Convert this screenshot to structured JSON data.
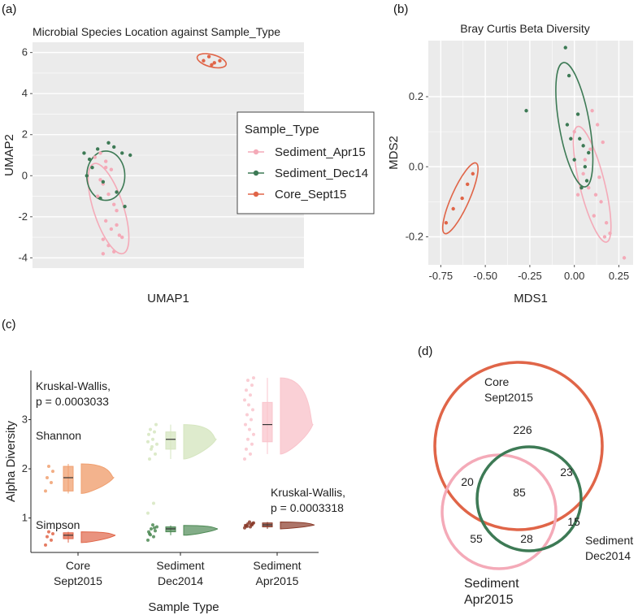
{
  "panel_labels": [
    "(a)",
    "(b)",
    "(c)",
    "(d)"
  ],
  "colors": {
    "sediment_apr": "#f4aab8",
    "sediment_dec": "#3d7a55",
    "core_sept": "#e06548",
    "panel_bg": "#ebebeb",
    "shannon_core": "#f0a070",
    "shannon_dec": "#d6e6c0",
    "shannon_apr": "#f9c4cc",
    "simpson_core": "#e06548",
    "simpson_dec": "#4e8a55",
    "simpson_apr": "#8a3b2a"
  },
  "chart_data": [
    {
      "panel": "(a)",
      "type": "scatter",
      "title": "Microbial Species Location against Sample_Type",
      "xlabel": "UMAP1",
      "ylabel": "UMAP2",
      "yticks": [
        -4,
        -2,
        0,
        2,
        4,
        6
      ],
      "ylim": [
        -4.5,
        6.5
      ],
      "xlim": [
        -1,
        9
      ],
      "legend": {
        "title": "Sample_Type",
        "placement": "right",
        "entries": [
          "Sediment_Apr15",
          "Sediment_Dec14",
          "Core_Sept15"
        ]
      },
      "series": [
        {
          "name": "Sediment_Apr15",
          "color_key": "sediment_apr",
          "x": [
            1.3,
            1.5,
            1.7,
            1.9,
            1.6,
            1.8,
            2.0,
            2.1,
            1.4,
            1.7,
            1.9,
            2.2,
            1.6,
            1.8,
            2.0,
            2.3,
            1.5,
            1.7,
            2.1,
            1.6
          ],
          "y": [
            0.9,
            1.1,
            0.7,
            0.3,
            -0.4,
            -0.9,
            -1.4,
            -1.7,
            -1.0,
            -2.2,
            -2.6,
            -2.9,
            -3.1,
            -3.4,
            -3.7,
            -3.0,
            -0.2,
            0.4,
            -2.4,
            -3.8
          ]
        },
        {
          "name": "Sediment_Dec14",
          "color_key": "sediment_dec",
          "x": [
            0.9,
            1.1,
            1.4,
            1.8,
            2.0,
            2.3,
            1.2,
            1.6,
            2.1,
            1.0,
            1.5,
            2.4,
            2.6
          ],
          "y": [
            1.1,
            0.8,
            1.3,
            1.6,
            1.4,
            1.1,
            0.4,
            -0.3,
            -0.8,
            0.0,
            -1.1,
            -1.5,
            1.0
          ]
        },
        {
          "name": "Core_Sept15",
          "color_key": "core_sept",
          "x": [
            5.3,
            5.5,
            5.7,
            5.9,
            5.6
          ],
          "y": [
            5.6,
            5.8,
            5.5,
            5.6,
            5.4
          ]
        }
      ],
      "ellipses": [
        {
          "color_key": "sediment_apr",
          "cx": 1.8,
          "cy": -1.6,
          "rx": 0.55,
          "ry": 2.3,
          "angle": -18
        },
        {
          "color_key": "sediment_dec",
          "cx": 1.7,
          "cy": 0.0,
          "rx": 0.7,
          "ry": 1.2,
          "angle": 0
        },
        {
          "color_key": "core_sept",
          "cx": 5.6,
          "cy": 5.6,
          "rx": 0.55,
          "ry": 0.3,
          "angle": 15
        }
      ]
    },
    {
      "panel": "(b)",
      "type": "scatter",
      "title": "Bray Curtis Beta Diversity",
      "xlabel": "MDS1",
      "ylabel": "MDS2",
      "xticks": [
        -0.75,
        -0.5,
        -0.25,
        0.0,
        0.25
      ],
      "xtick_labels": [
        "-0.75",
        "-0.50",
        "-0.25",
        "0.00",
        "0.25"
      ],
      "yticks": [
        -0.2,
        0.0,
        0.2
      ],
      "ytick_labels": [
        "-0.2",
        "0.0",
        "0.2"
      ],
      "xlim": [
        -0.82,
        0.33
      ],
      "ylim": [
        -0.28,
        0.36
      ],
      "series": [
        {
          "name": "Sediment_Apr15",
          "color_key": "sediment_apr",
          "x": [
            0.1,
            0.13,
            0.16,
            0.05,
            0.08,
            0.12,
            0.15,
            0.18,
            0.02,
            0.06,
            0.11,
            0.2,
            0.0,
            0.14,
            0.17,
            0.28,
            0.09
          ],
          "y": [
            0.16,
            0.12,
            0.07,
            -0.02,
            -0.06,
            -0.08,
            -0.1,
            -0.16,
            -0.08,
            0.02,
            -0.14,
            -0.19,
            0.1,
            -0.03,
            -0.2,
            -0.26,
            0.05
          ]
        },
        {
          "name": "Sediment_Dec14",
          "color_key": "sediment_dec",
          "x": [
            -0.05,
            -0.03,
            -0.27,
            0.02,
            0.03,
            0.05,
            0.08,
            0.0,
            0.06,
            -0.02,
            0.04,
            0.07,
            -0.04
          ],
          "y": [
            0.34,
            0.26,
            0.16,
            0.15,
            0.08,
            0.06,
            0.04,
            0.02,
            0.0,
            0.08,
            -0.06,
            -0.04,
            0.12
          ]
        },
        {
          "name": "Core_Sept15",
          "color_key": "core_sept",
          "x": [
            -0.57,
            -0.6,
            -0.63,
            -0.68,
            -0.72
          ],
          "y": [
            -0.02,
            -0.05,
            -0.09,
            -0.12,
            -0.16
          ]
        }
      ],
      "ellipses": [
        {
          "color_key": "sediment_apr",
          "cx": 0.1,
          "cy": -0.05,
          "rx": 0.07,
          "ry": 0.17,
          "angle": -14
        },
        {
          "color_key": "sediment_dec",
          "cx": 0.0,
          "cy": 0.12,
          "rx": 0.085,
          "ry": 0.18,
          "angle": -10
        },
        {
          "color_key": "core_sept",
          "cx": -0.64,
          "cy": -0.09,
          "rx": 0.05,
          "ry": 0.11,
          "angle": 24
        }
      ]
    },
    {
      "panel": "(c)",
      "type": "box",
      "xlabel": "Sample Type",
      "ylabel": "Alpha Diversity",
      "categories": [
        "Core\nSept2015",
        "Sediment\nDec2014",
        "Sediment\nApr2015"
      ],
      "yticks": [
        1,
        2,
        3
      ],
      "ylim": [
        0.3,
        4.0
      ],
      "annotations": [
        {
          "text": "Kruskal-Wallis,",
          "text2": "p = 0.0003033"
        },
        {
          "text": "Shannon"
        },
        {
          "text": "Simpson"
        },
        {
          "text": "Kruskal-Wallis,",
          "text2": "p = 0.0003318"
        }
      ],
      "series": [
        {
          "name": "Shannon",
          "boxes": [
            {
              "category": 0,
              "q1": 1.55,
              "median": 1.82,
              "q3": 2.05,
              "min": 1.5,
              "max": 2.1,
              "color_key": "shannon_core",
              "points": [
                1.55,
                1.72,
                1.82,
                1.95,
                2.05
              ]
            },
            {
              "category": 1,
              "q1": 2.4,
              "median": 2.6,
              "q3": 2.75,
              "min": 2.2,
              "max": 2.9,
              "color_key": "shannon_dec",
              "points": [
                1.1,
                1.3,
                2.2,
                2.3,
                2.4,
                2.5,
                2.6,
                2.7,
                2.75,
                2.8,
                2.9,
                2.45,
                2.55
              ]
            },
            {
              "category": 2,
              "q1": 2.55,
              "median": 2.9,
              "q3": 3.35,
              "min": 2.3,
              "max": 3.85,
              "color_key": "shannon_apr",
              "points": [
                2.2,
                2.3,
                2.4,
                2.5,
                2.6,
                2.7,
                2.8,
                2.9,
                3.0,
                3.1,
                3.2,
                3.3,
                3.4,
                3.5,
                3.6,
                3.7,
                3.8,
                3.85
              ]
            }
          ]
        },
        {
          "name": "Simpson",
          "boxes": [
            {
              "category": 0,
              "q1": 0.58,
              "median": 0.65,
              "q3": 0.7,
              "min": 0.5,
              "max": 0.72,
              "color_key": "simpson_core",
              "points": [
                0.45,
                0.55,
                0.62,
                0.68,
                0.72
              ]
            },
            {
              "category": 1,
              "q1": 0.72,
              "median": 0.78,
              "q3": 0.82,
              "min": 0.65,
              "max": 0.85,
              "color_key": "simpson_dec",
              "points": [
                0.55,
                0.62,
                0.68,
                0.74,
                0.78,
                0.82,
                0.86,
                0.72,
                0.8,
                0.66
              ]
            },
            {
              "category": 2,
              "q1": 0.82,
              "median": 0.86,
              "q3": 0.9,
              "min": 0.78,
              "max": 0.92,
              "color_key": "simpson_apr",
              "points": [
                0.8,
                0.82,
                0.84,
                0.86,
                0.88,
                0.9,
                0.92,
                0.85,
                0.87,
                0.83,
                0.89
              ]
            }
          ]
        }
      ]
    },
    {
      "panel": "(d)",
      "type": "venn",
      "sets": [
        {
          "label": "Core",
          "label2": "Sept2015",
          "color_key": "core_sept"
        },
        {
          "label": "Sediment",
          "label2": "Dec2014",
          "color_key": "sediment_dec"
        },
        {
          "label": "Sediment",
          "label2": "Apr2015",
          "color_key": "sediment_apr"
        }
      ],
      "regions": {
        "core_only": "226",
        "core_apr": "20",
        "core_dec": "23",
        "all_three": "85",
        "dec_only": "15",
        "apr_only": "55",
        "apr_dec": "28"
      }
    }
  ]
}
